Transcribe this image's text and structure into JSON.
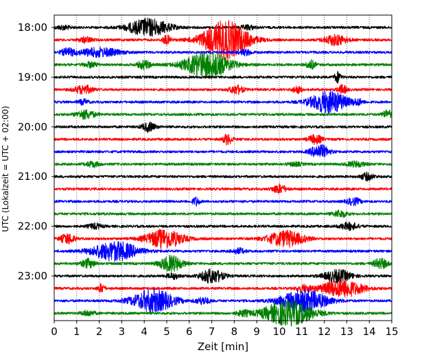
{
  "chart_data": {
    "type": "line",
    "title": "",
    "xlabel": "Zeit  [min]",
    "ylabel": "UTC (Lokalzeit = UTC + 02:00)",
    "xlim": [
      0,
      15
    ],
    "x_ticks": [
      0,
      1,
      2,
      3,
      4,
      5,
      6,
      7,
      8,
      9,
      10,
      11,
      12,
      13,
      14,
      15
    ],
    "x_tick_labels": [
      "0",
      "1",
      "2",
      "3",
      "4",
      "5",
      "6",
      "7",
      "8",
      "9",
      "10",
      "11",
      "12",
      "13",
      "14",
      "15"
    ],
    "y_tick_labels": [
      "18:00",
      "19:00",
      "20:00",
      "21:00",
      "22:00",
      "23:00"
    ],
    "line_start_times": [
      "18:00",
      "18:15",
      "18:30",
      "18:45",
      "19:00",
      "19:15",
      "19:30",
      "19:45",
      "20:00",
      "20:15",
      "20:30",
      "20:45",
      "21:00",
      "21:15",
      "21:30",
      "21:45",
      "22:00",
      "22:15",
      "22:30",
      "22:45",
      "23:00",
      "23:15",
      "23:30",
      "23:45"
    ],
    "minutes_per_line": 15,
    "grid_x": true,
    "grid_style": "dotted",
    "colors": [
      "#000000",
      "#ff0000",
      "#0000ff",
      "#008000"
    ],
    "series": [
      {
        "start": "18:00",
        "color": "#000000",
        "events": [
          {
            "t": 4.2,
            "amp": 1.0,
            "w": 0.9
          },
          {
            "t": 0.4,
            "amp": 0.25,
            "w": 0.3
          },
          {
            "t": 8.6,
            "amp": 0.25,
            "w": 0.3
          }
        ]
      },
      {
        "start": "18:15",
        "color": "#ff0000",
        "events": [
          {
            "t": 7.6,
            "amp": 2.2,
            "w": 1.0
          },
          {
            "t": 5.0,
            "amp": 0.5,
            "w": 0.2
          },
          {
            "t": 12.5,
            "amp": 0.6,
            "w": 0.5
          },
          {
            "t": 1.4,
            "amp": 0.3,
            "w": 0.3
          }
        ]
      },
      {
        "start": "18:30",
        "color": "#0000ff",
        "events": [
          {
            "t": 2.0,
            "amp": 0.5,
            "w": 0.9
          },
          {
            "t": 0.6,
            "amp": 0.4,
            "w": 0.3
          },
          {
            "t": 8.5,
            "amp": 0.3,
            "w": 0.3
          }
        ]
      },
      {
        "start": "18:45",
        "color": "#008000",
        "events": [
          {
            "t": 6.8,
            "amp": 1.5,
            "w": 1.0
          },
          {
            "t": 4.0,
            "amp": 0.5,
            "w": 0.3
          },
          {
            "t": 11.4,
            "amp": 0.5,
            "w": 0.2
          },
          {
            "t": 1.6,
            "amp": 0.3,
            "w": 0.3
          }
        ]
      },
      {
        "start": "19:00",
        "color": "#000000",
        "events": [
          {
            "t": 12.6,
            "amp": 0.6,
            "w": 0.15
          }
        ]
      },
      {
        "start": "19:15",
        "color": "#ff0000",
        "events": [
          {
            "t": 1.3,
            "amp": 0.5,
            "w": 0.4
          },
          {
            "t": 8.1,
            "amp": 0.5,
            "w": 0.3
          },
          {
            "t": 10.8,
            "amp": 0.4,
            "w": 0.2
          },
          {
            "t": 12.8,
            "amp": 0.5,
            "w": 0.2
          }
        ]
      },
      {
        "start": "19:30",
        "color": "#0000ff",
        "events": [
          {
            "t": 12.2,
            "amp": 1.3,
            "w": 0.8
          },
          {
            "t": 1.3,
            "amp": 0.3,
            "w": 0.2
          },
          {
            "t": 13.5,
            "amp": 0.3,
            "w": 0.2
          }
        ]
      },
      {
        "start": "19:45",
        "color": "#008000",
        "events": [
          {
            "t": 1.4,
            "amp": 0.5,
            "w": 0.4
          },
          {
            "t": 14.8,
            "amp": 0.5,
            "w": 0.2
          }
        ]
      },
      {
        "start": "20:00",
        "color": "#000000",
        "events": [
          {
            "t": 4.2,
            "amp": 0.5,
            "w": 0.3
          }
        ]
      },
      {
        "start": "20:15",
        "color": "#ff0000",
        "events": [
          {
            "t": 7.7,
            "amp": 0.6,
            "w": 0.2
          },
          {
            "t": 11.6,
            "amp": 0.5,
            "w": 0.3
          }
        ]
      },
      {
        "start": "20:30",
        "color": "#0000ff",
        "events": [
          {
            "t": 11.8,
            "amp": 0.8,
            "w": 0.4
          }
        ]
      },
      {
        "start": "20:45",
        "color": "#008000",
        "events": [
          {
            "t": 1.7,
            "amp": 0.3,
            "w": 0.3
          },
          {
            "t": 13.4,
            "amp": 0.3,
            "w": 0.4
          },
          {
            "t": 10.7,
            "amp": 0.2,
            "w": 0.3
          }
        ]
      },
      {
        "start": "21:00",
        "color": "#000000",
        "events": [
          {
            "t": 13.9,
            "amp": 0.4,
            "w": 0.3
          }
        ]
      },
      {
        "start": "21:15",
        "color": "#ff0000",
        "events": [
          {
            "t": 10.0,
            "amp": 0.5,
            "w": 0.3
          }
        ]
      },
      {
        "start": "21:30",
        "color": "#0000ff",
        "events": [
          {
            "t": 6.3,
            "amp": 0.5,
            "w": 0.15
          },
          {
            "t": 13.3,
            "amp": 0.4,
            "w": 0.3
          }
        ]
      },
      {
        "start": "21:45",
        "color": "#008000",
        "events": [
          {
            "t": 12.7,
            "amp": 0.4,
            "w": 0.3
          }
        ]
      },
      {
        "start": "22:00",
        "color": "#000000",
        "events": [
          {
            "t": 1.8,
            "amp": 0.3,
            "w": 0.3
          },
          {
            "t": 13.1,
            "amp": 0.4,
            "w": 0.4
          }
        ]
      },
      {
        "start": "22:15",
        "color": "#ff0000",
        "events": [
          {
            "t": 4.9,
            "amp": 1.1,
            "w": 0.8
          },
          {
            "t": 0.6,
            "amp": 0.6,
            "w": 0.3
          },
          {
            "t": 10.3,
            "amp": 0.9,
            "w": 0.8
          }
        ]
      },
      {
        "start": "22:30",
        "color": "#0000ff",
        "events": [
          {
            "t": 2.7,
            "amp": 1.1,
            "w": 1.0
          },
          {
            "t": 8.2,
            "amp": 0.3,
            "w": 0.3
          }
        ]
      },
      {
        "start": "22:45",
        "color": "#008000",
        "events": [
          {
            "t": 5.2,
            "amp": 0.9,
            "w": 0.5
          },
          {
            "t": 1.5,
            "amp": 0.5,
            "w": 0.3
          },
          {
            "t": 14.5,
            "amp": 0.6,
            "w": 0.3
          }
        ]
      },
      {
        "start": "23:00",
        "color": "#000000",
        "events": [
          {
            "t": 7.0,
            "amp": 0.8,
            "w": 0.5
          },
          {
            "t": 12.6,
            "amp": 0.7,
            "w": 0.6
          },
          {
            "t": 5.3,
            "amp": 0.3,
            "w": 0.3
          }
        ]
      },
      {
        "start": "23:15",
        "color": "#ff0000",
        "events": [
          {
            "t": 12.8,
            "amp": 1.0,
            "w": 0.9
          },
          {
            "t": 2.1,
            "amp": 0.5,
            "w": 0.15
          },
          {
            "t": 11.1,
            "amp": 0.4,
            "w": 0.3
          }
        ]
      },
      {
        "start": "23:30",
        "color": "#0000ff",
        "events": [
          {
            "t": 4.4,
            "amp": 1.3,
            "w": 0.9
          },
          {
            "t": 11.1,
            "amp": 1.3,
            "w": 1.0
          },
          {
            "t": 6.6,
            "amp": 0.4,
            "w": 0.3
          }
        ]
      },
      {
        "start": "23:45",
        "color": "#008000",
        "events": [
          {
            "t": 10.4,
            "amp": 1.4,
            "w": 1.1
          },
          {
            "t": 1.5,
            "amp": 0.3,
            "w": 0.3
          },
          {
            "t": 8.4,
            "amp": 0.3,
            "w": 0.3
          }
        ]
      }
    ]
  }
}
